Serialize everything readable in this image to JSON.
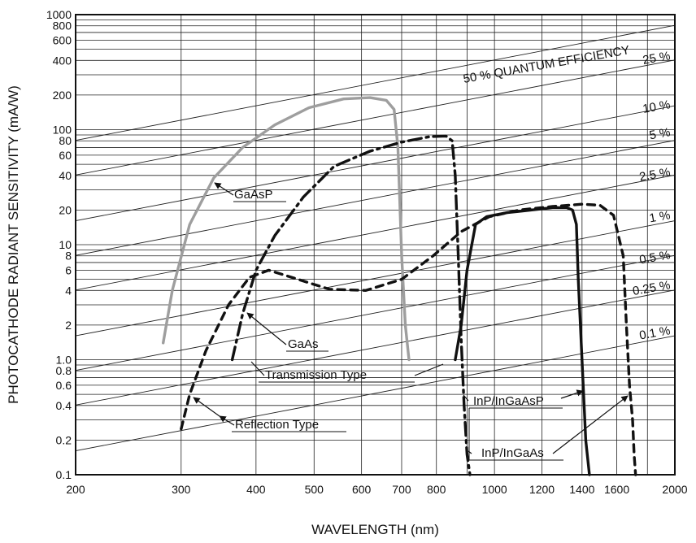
{
  "chart_data": {
    "type": "line",
    "xlabel": "WAVELENGTH (nm)",
    "ylabel": "PHOTOCATHODE RADIANT SENSITIVITY (mA/W)",
    "x_scale": "log",
    "y_scale": "log",
    "xlim": [
      200,
      2000
    ],
    "ylim": [
      0.1,
      1000
    ],
    "grid": true,
    "x_tick_values": [
      200,
      300,
      400,
      500,
      600,
      700,
      800,
      1000,
      1200,
      1400,
      1600,
      2000
    ],
    "x_tick_labels": [
      "200",
      "300",
      "400",
      "500",
      "600",
      "700",
      "800",
      "1000",
      "1200",
      "1400",
      "1600",
      "2000"
    ],
    "y_tick_values": [
      0.1,
      0.2,
      0.4,
      0.6,
      0.8,
      1,
      2,
      4,
      6,
      8,
      10,
      20,
      40,
      60,
      80,
      100,
      200,
      400,
      600,
      800,
      1000
    ],
    "y_tick_labels": [
      "0.1",
      "0.2",
      "0.4",
      "0.6",
      "0.8",
      "1.0",
      "2",
      "4",
      "6",
      "8",
      "10",
      "20",
      "40",
      "60",
      "80",
      "100",
      "200",
      "400",
      "600",
      "800",
      "1000"
    ],
    "quantum_efficiency_lines": [
      {
        "percent": 50,
        "label": "50 % QUANTUM EFFICIENCY"
      },
      {
        "percent": 25,
        "label": "25 %"
      },
      {
        "percent": 10,
        "label": "10 %"
      },
      {
        "percent": 5,
        "label": "5 %"
      },
      {
        "percent": 2.5,
        "label": "2.5 %"
      },
      {
        "percent": 1,
        "label": "1 %"
      },
      {
        "percent": 0.5,
        "label": "0.5 %"
      },
      {
        "percent": 0.25,
        "label": "0.25 %"
      },
      {
        "percent": 0.1,
        "label": "0.1 %"
      }
    ],
    "series": [
      {
        "name": "GaAsP",
        "style": "solid",
        "color": "#9e9e9e",
        "x": [
          280,
          290,
          310,
          340,
          380,
          430,
          490,
          560,
          620,
          660,
          680,
          690,
          700,
          710,
          720
        ],
        "y": [
          1.4,
          4,
          15,
          38,
          70,
          110,
          155,
          185,
          190,
          180,
          150,
          70,
          8,
          2,
          1
        ]
      },
      {
        "name": "GaAs",
        "style": "dash-dot",
        "color": "#111111",
        "x": [
          365,
          380,
          400,
          430,
          480,
          540,
          620,
          700,
          780,
          830,
          850,
          860,
          870,
          880,
          890,
          900,
          910
        ],
        "y": [
          1,
          2.5,
          6,
          12,
          26,
          48,
          65,
          78,
          87,
          88,
          80,
          40,
          8,
          1.5,
          0.4,
          0.15,
          0.1
        ]
      },
      {
        "name": "InP/InGaAsP",
        "style": "solid",
        "color": "#111111",
        "x": [
          860,
          880,
          900,
          930,
          970,
          1050,
          1150,
          1250,
          1320,
          1350,
          1370,
          1380,
          1400,
          1420,
          1440
        ],
        "y": [
          1,
          2,
          6,
          15,
          17.5,
          19,
          20,
          21,
          21,
          20,
          15,
          5,
          1,
          0.2,
          0.1
        ]
      },
      {
        "name": "InP/InGaAs",
        "style": "dashed",
        "color": "#111111",
        "x": [
          300,
          310,
          330,
          360,
          390,
          420,
          470,
          530,
          610,
          700,
          790,
          880,
          980,
          1100,
          1250,
          1400,
          1500,
          1580,
          1640,
          1660,
          1680,
          1700,
          1710,
          1720
        ],
        "y": [
          0.25,
          0.5,
          1.2,
          3,
          5.2,
          6,
          5,
          4.1,
          4,
          5,
          8,
          13,
          17.5,
          20,
          21.5,
          22.5,
          22,
          18,
          8,
          2,
          0.6,
          0.3,
          0.15,
          0.1
        ]
      }
    ],
    "annotations": {
      "gaasp": "GaAsP",
      "gaas": "GaAs",
      "transmission_type": "Transmission Type",
      "reflection_type": "Reflection Type",
      "inp_ingaasp": "InP/InGaAsP",
      "inp_ingaas": "InP/InGaAs"
    }
  }
}
